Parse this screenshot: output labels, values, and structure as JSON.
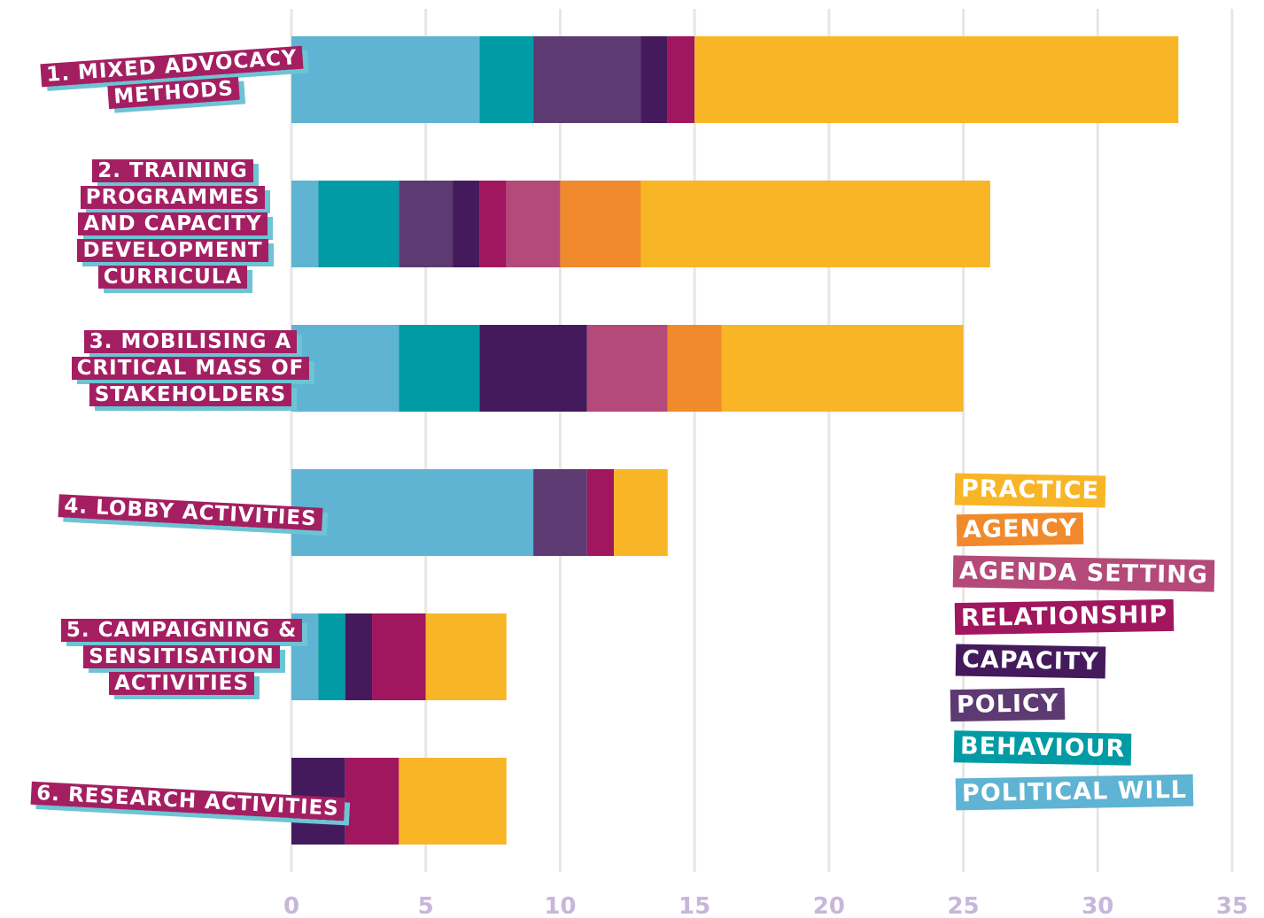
{
  "chart_data": {
    "type": "stacked-bar-horizontal",
    "categories": [
      "1. MIXED ADVOCACY METHODS",
      "2. TRAINING PROGRAMMES AND CAPACITY DEVELOPMENT CURRICULA",
      "3. MOBILISING A CRITICAL MASS OF STAKEHOLDERS",
      "4. LOBBY ACTIVITIES",
      "5. CAMPAIGNING & SENSITISATION ACTIVITIES",
      "6. RESEARCH ACTIVITIES"
    ],
    "series": [
      {
        "name": "POLITICAL WILL",
        "color": "#5fb3d3",
        "values": [
          7,
          1,
          4,
          9,
          1,
          0
        ]
      },
      {
        "name": "BEHAVIOUR",
        "color": "#009ba4",
        "values": [
          2,
          3,
          3,
          0,
          1,
          0
        ]
      },
      {
        "name": "POLICY",
        "color": "#5e3a72",
        "values": [
          4,
          2,
          0,
          2,
          0,
          0
        ]
      },
      {
        "name": "CAPACITY",
        "color": "#441a5c",
        "values": [
          1,
          1,
          4,
          0,
          1,
          2
        ]
      },
      {
        "name": "RELATIONSHIP",
        "color": "#a0175f",
        "values": [
          1,
          1,
          0,
          1,
          2,
          2
        ]
      },
      {
        "name": "AGENDA SETTING",
        "color": "#b34a7a",
        "values": [
          0,
          2,
          3,
          0,
          0,
          0
        ]
      },
      {
        "name": "AGENCY",
        "color": "#f08a2c",
        "values": [
          0,
          3,
          2,
          0,
          0,
          0
        ]
      },
      {
        "name": "PRACTICE",
        "color": "#f8b526",
        "values": [
          18,
          13,
          9,
          2,
          3,
          4
        ]
      }
    ],
    "xlim": [
      0,
      35
    ],
    "xticks": [
      0,
      5,
      10,
      15,
      20,
      25,
      30,
      35
    ],
    "grid": true
  }
}
